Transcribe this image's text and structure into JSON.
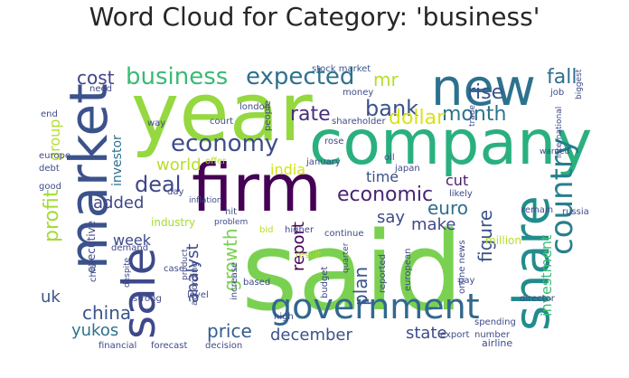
{
  "chart_data": {
    "type": "wordcloud",
    "title": "Word Cloud for Category: 'business'",
    "colormap": "viridis",
    "background": "#ffffff",
    "words": [
      {
        "text": "said",
        "color": "#7ad151"
      },
      {
        "text": "year",
        "color": "#95d840"
      },
      {
        "text": "company",
        "color": "#2ab07f"
      },
      {
        "text": "firm",
        "color": "#440154"
      },
      {
        "text": "market",
        "color": "#3b528b"
      },
      {
        "text": "new",
        "color": "#2c728e"
      },
      {
        "text": "share",
        "color": "#228c8d"
      },
      {
        "text": "sale",
        "color": "#3e4989"
      },
      {
        "text": "government",
        "color": "#31688e"
      },
      {
        "text": "country",
        "color": "#277f8e"
      },
      {
        "text": "business",
        "color": "#3aba76"
      },
      {
        "text": "expected",
        "color": "#2d708e"
      },
      {
        "text": "economy",
        "color": "#3e4c8a"
      },
      {
        "text": "bank",
        "color": "#3b528b"
      },
      {
        "text": "month",
        "color": "#2c738e"
      },
      {
        "text": "profit",
        "color": "#a5db36"
      },
      {
        "text": "rise",
        "color": "#3a548c"
      },
      {
        "text": "fall",
        "color": "#2e6f8e"
      },
      {
        "text": "cost",
        "color": "#404387"
      },
      {
        "text": "mr",
        "color": "#b5de2b"
      },
      {
        "text": "rate",
        "color": "#46307e"
      },
      {
        "text": "dollar",
        "color": "#d8e219"
      },
      {
        "text": "deal",
        "color": "#3f4788"
      },
      {
        "text": "economic",
        "color": "#482475"
      },
      {
        "text": "growth",
        "color": "#7ad151"
      },
      {
        "text": "report",
        "color": "#440154"
      },
      {
        "text": "euro",
        "color": "#2e6e8e"
      },
      {
        "text": "figure",
        "color": "#3b528b"
      },
      {
        "text": "analyst",
        "color": "#3e4a89"
      },
      {
        "text": "investment",
        "color": "#3dbc74"
      },
      {
        "text": "price",
        "color": "#365d8d"
      },
      {
        "text": "plan",
        "color": "#3a548c"
      },
      {
        "text": "china",
        "color": "#3a548c"
      },
      {
        "text": "yukos",
        "color": "#2c738e"
      },
      {
        "text": "december",
        "color": "#3b528b"
      },
      {
        "text": "state",
        "color": "#3d4d8a"
      },
      {
        "text": "uk",
        "color": "#3a548c"
      },
      {
        "text": "world",
        "color": "#b8de29"
      },
      {
        "text": "india",
        "color": "#d2e21b"
      },
      {
        "text": "added",
        "color": "#3f4788"
      },
      {
        "text": "week",
        "color": "#3e4989"
      },
      {
        "text": "say",
        "color": "#3e4a89"
      },
      {
        "text": "make",
        "color": "#3e4a89"
      },
      {
        "text": "time",
        "color": "#3b528b"
      },
      {
        "text": "cut",
        "color": "#481d6f"
      },
      {
        "text": "group",
        "color": "#b5de2b"
      },
      {
        "text": "investor",
        "color": "#2e6f8e"
      },
      {
        "text": "executive",
        "color": "#3e4a89"
      },
      {
        "text": "industry",
        "color": "#a5db36"
      },
      {
        "text": "stock market",
        "color": "#3a548c"
      },
      {
        "text": "financial",
        "color": "#3e4a89"
      },
      {
        "text": "forecast",
        "color": "#3e4989"
      },
      {
        "text": "decision",
        "color": "#3e4a89"
      },
      {
        "text": "airline",
        "color": "#3e4a89"
      },
      {
        "text": "online news",
        "color": "#3e4a89"
      },
      {
        "text": "million",
        "color": "#b5de2b"
      },
      {
        "text": "court",
        "color": "#3e4a89"
      },
      {
        "text": "people",
        "color": "#3e4a89"
      },
      {
        "text": "shareholder",
        "color": "#3e4a89"
      },
      {
        "text": "money",
        "color": "#3e4a89"
      },
      {
        "text": "january",
        "color": "#3e4a89"
      },
      {
        "text": "continue",
        "color": "#3e4a89"
      },
      {
        "text": "higher",
        "color": "#3e4a89"
      },
      {
        "text": "result",
        "color": "#b5de2b"
      },
      {
        "text": "bid",
        "color": "#b5de2b"
      },
      {
        "text": "hit",
        "color": "#3e4a89"
      },
      {
        "text": "oil",
        "color": "#3e4a89"
      },
      {
        "text": "japan",
        "color": "#3e4a89"
      },
      {
        "text": "likely",
        "color": "#3e4a89"
      },
      {
        "text": "remain",
        "color": "#3e4a89"
      },
      {
        "text": "russia",
        "color": "#3e4a89"
      },
      {
        "text": "international",
        "color": "#3e4a89"
      },
      {
        "text": "biggest",
        "color": "#3e4a89"
      },
      {
        "text": "trade",
        "color": "#3e4a89"
      },
      {
        "text": "london",
        "color": "#3e4a89"
      },
      {
        "text": "europe",
        "color": "#3e4a89"
      },
      {
        "text": "need",
        "color": "#3e4a89"
      },
      {
        "text": "job",
        "color": "#3e4a89"
      },
      {
        "text": "day",
        "color": "#3e4a89"
      },
      {
        "text": "offer",
        "color": "#b5de2b"
      },
      {
        "text": "debt",
        "color": "#3e4a89"
      },
      {
        "text": "good",
        "color": "#3e4a89"
      },
      {
        "text": "demand",
        "color": "#3e4a89"
      },
      {
        "text": "chief",
        "color": "#3e4a89"
      },
      {
        "text": "case",
        "color": "#3e4a89"
      },
      {
        "text": "strong",
        "color": "#3e4a89"
      },
      {
        "text": "level",
        "color": "#3e4a89"
      },
      {
        "text": "according",
        "color": "#3e4a89"
      },
      {
        "text": "increase",
        "color": "#3e4a89"
      },
      {
        "text": "based",
        "color": "#3e4a89"
      },
      {
        "text": "high",
        "color": "#3e4a89"
      },
      {
        "text": "budget",
        "color": "#3e4a89"
      },
      {
        "text": "reported",
        "color": "#3e4a89"
      },
      {
        "text": "european",
        "color": "#3e4a89"
      },
      {
        "text": "pay",
        "color": "#3e4a89"
      },
      {
        "text": "director",
        "color": "#3e4a89"
      },
      {
        "text": "spending",
        "color": "#3e4a89"
      },
      {
        "text": "export",
        "color": "#3e4a89"
      },
      {
        "text": "number",
        "color": "#3e4a89"
      },
      {
        "text": "way",
        "color": "#3e4a89"
      },
      {
        "text": "end",
        "color": "#3e4a89"
      },
      {
        "text": "product",
        "color": "#3e4a89"
      },
      {
        "text": "despite",
        "color": "#3e4a89"
      },
      {
        "text": "rose",
        "color": "#3e4a89"
      },
      {
        "text": "warned",
        "color": "#3e4a89"
      },
      {
        "text": "inflation",
        "color": "#3e4a89"
      },
      {
        "text": "problem",
        "color": "#3e4a89"
      },
      {
        "text": "quarter",
        "color": "#3e4a89"
      }
    ]
  }
}
